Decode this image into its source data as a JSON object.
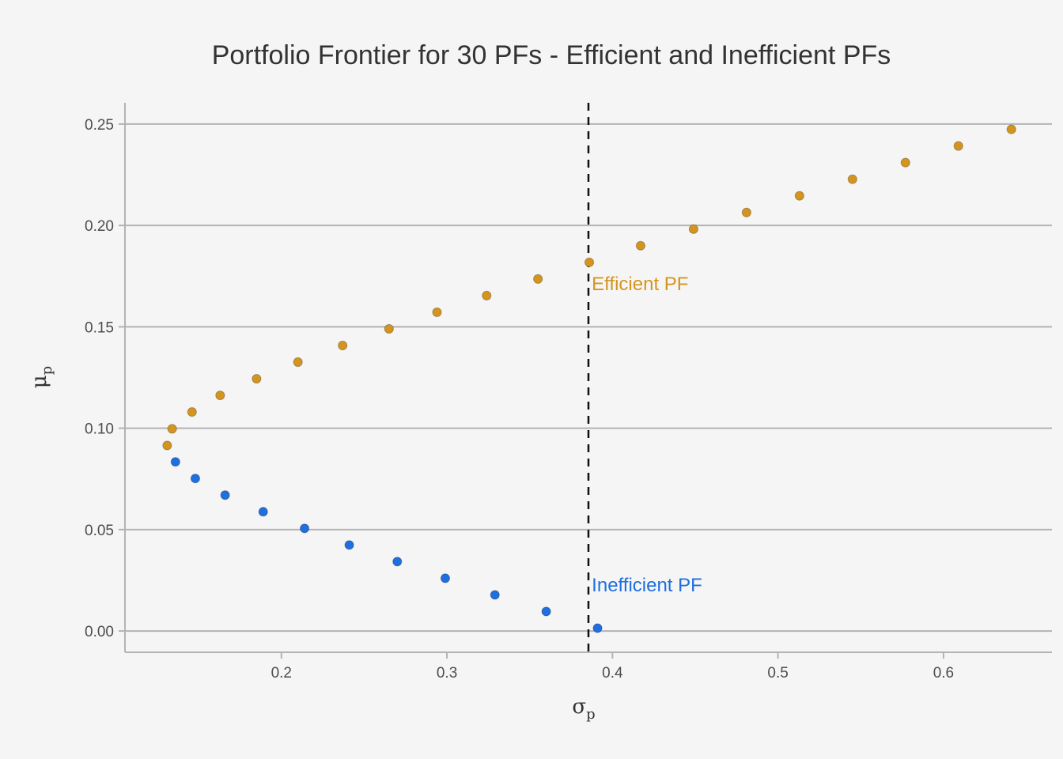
{
  "chart_data": {
    "type": "scatter",
    "title": "Portfolio Frontier for 30 PFs - Efficient and Inefficient PFs",
    "xlabel": {
      "symbol": "σ",
      "sub": "p"
    },
    "ylabel": {
      "symbol": "μ",
      "sub": "p"
    },
    "xlim": [
      0.1055,
      0.6655
    ],
    "ylim": [
      -0.0105,
      0.2605
    ],
    "x_ticks": [
      0.2,
      0.3,
      0.4,
      0.5,
      0.6
    ],
    "x_tick_labels": [
      "0.2",
      "0.3",
      "0.4",
      "0.5",
      "0.6"
    ],
    "y_ticks": [
      0.0,
      0.05,
      0.1,
      0.15,
      0.2,
      0.25
    ],
    "y_tick_labels": [
      "0.00",
      "0.05",
      "0.10",
      "0.15",
      "0.20",
      "0.25"
    ],
    "grid": "horizontal",
    "vline": {
      "x": 0.3855,
      "style": "dashed",
      "color": "#111111"
    },
    "series": [
      {
        "label": "efficient",
        "color": "#d4951f",
        "x": [
          0.131,
          0.134,
          0.146,
          0.163,
          0.185,
          0.21,
          0.237,
          0.265,
          0.294,
          0.324,
          0.355,
          0.386,
          0.417,
          0.449,
          0.481,
          0.513,
          0.545,
          0.577,
          0.609,
          0.641
        ],
        "y": [
          0.0915,
          0.0997,
          0.108,
          0.1162,
          0.1244,
          0.1326,
          0.1408,
          0.149,
          0.1572,
          0.1654,
          0.1736,
          0.1818,
          0.19,
          0.1982,
          0.2064,
          0.2146,
          0.2228,
          0.231,
          0.2392,
          0.2474
        ]
      },
      {
        "label": "inefficient",
        "color": "#1f6fe0",
        "x": [
          0.136,
          0.148,
          0.166,
          0.189,
          0.214,
          0.241,
          0.27,
          0.299,
          0.329,
          0.36,
          0.391
        ],
        "y": [
          0.0834,
          0.0752,
          0.067,
          0.0588,
          0.0506,
          0.0424,
          0.0342,
          0.026,
          0.0178,
          0.0096,
          0.0014
        ]
      }
    ],
    "annotations": [
      {
        "text": "Efficient PF",
        "x": 0.3875,
        "y": 0.168,
        "color": "#d4951f"
      },
      {
        "text": "Inefficient PF",
        "x": 0.3875,
        "y": 0.0195,
        "color": "#1f6fe0"
      }
    ]
  }
}
